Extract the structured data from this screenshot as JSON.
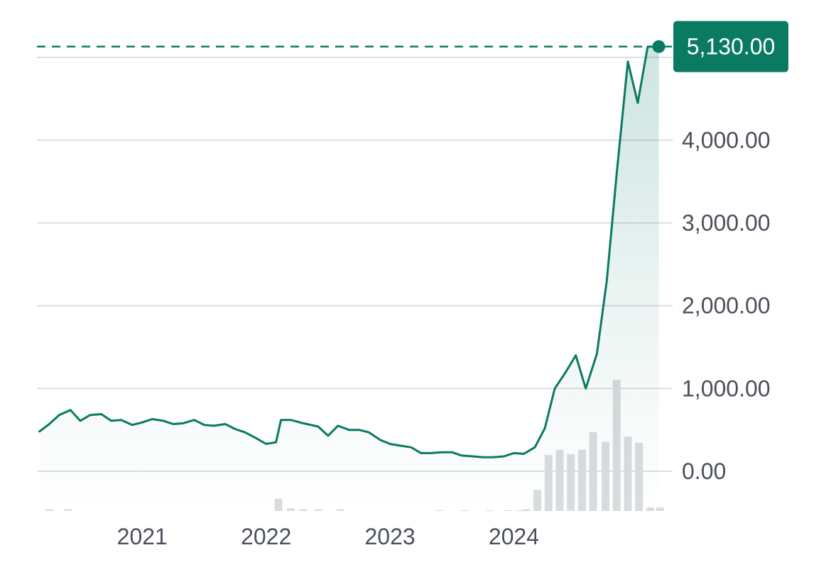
{
  "colors": {
    "line": "#0a7a63",
    "area": "#0a7a63",
    "grid": "#dcdee2",
    "volume": "#d9dcdf",
    "badge_bg": "#0a7a63",
    "badge_text": "#ffffff",
    "tick_text": "#4a4f5a"
  },
  "chart_data": {
    "type": "line",
    "title": "",
    "xlabel": "",
    "ylabel": "",
    "x_range": [
      2020.15,
      2025.27
    ],
    "ylim": [
      -480,
      5350
    ],
    "y_ticks": [
      {
        "value": 0,
        "label": "0.00"
      },
      {
        "value": 1000,
        "label": "1,000.00"
      },
      {
        "value": 2000,
        "label": "2,000.00"
      },
      {
        "value": 3000,
        "label": "3,000.00"
      },
      {
        "value": 4000,
        "label": "4,000.00"
      },
      {
        "value": 5000,
        "label": ""
      }
    ],
    "x_ticks": [
      {
        "value": 2021,
        "label": "2021"
      },
      {
        "value": 2022,
        "label": "2022"
      },
      {
        "value": 2023,
        "label": "2023"
      },
      {
        "value": 2024,
        "label": "2024"
      }
    ],
    "grid": true,
    "current_value": 5130,
    "current_label": "5,130.00",
    "series": [
      {
        "x": [
          2020.17,
          2020.25,
          2020.33,
          2020.42,
          2020.5,
          2020.58,
          2020.67,
          2020.75,
          2020.83,
          2020.92,
          2021.0,
          2021.08,
          2021.17,
          2021.25,
          2021.33,
          2021.42,
          2021.5,
          2021.58,
          2021.67,
          2021.75,
          2021.83,
          2021.92,
          2022.0,
          2022.08,
          2022.12,
          2022.2,
          2022.3,
          2022.42,
          2022.5,
          2022.58,
          2022.67,
          2022.75,
          2022.83,
          2022.92,
          2023.0,
          2023.08,
          2023.17,
          2023.25,
          2023.33,
          2023.42,
          2023.5,
          2023.58,
          2023.67,
          2023.75,
          2023.83,
          2023.92,
          2024.0,
          2024.08,
          2024.17,
          2024.25,
          2024.33,
          2024.42,
          2024.5,
          2024.58,
          2024.67,
          2024.75,
          2024.83,
          2024.92,
          2025.0,
          2025.08,
          2025.17
        ],
        "values": [
          480,
          570,
          680,
          740,
          610,
          680,
          690,
          610,
          620,
          560,
          590,
          630,
          610,
          570,
          580,
          620,
          560,
          550,
          570,
          510,
          470,
          400,
          330,
          350,
          620,
          620,
          580,
          540,
          430,
          550,
          500,
          500,
          470,
          380,
          330,
          310,
          290,
          220,
          220,
          230,
          230,
          190,
          180,
          170,
          170,
          180,
          220,
          210,
          290,
          520,
          1000,
          1200,
          1400,
          1000,
          1420,
          2300,
          3600,
          4950,
          4450,
          5130,
          5130
        ]
      }
    ],
    "volume": {
      "x": [
        2020.25,
        2020.4,
        2022.1,
        2022.2,
        2022.3,
        2022.42,
        2022.6,
        2023.4,
        2023.6,
        2023.8,
        2023.95,
        2024.05,
        2024.1,
        2024.19,
        2024.28,
        2024.37,
        2024.46,
        2024.55,
        2024.64,
        2024.74,
        2024.83,
        2024.92,
        2025.01,
        2025.1,
        2025.18
      ],
      "values": [
        2,
        2,
        14,
        3,
        2,
        2,
        2,
        1,
        1,
        1,
        1,
        1,
        2,
        24,
        64,
        70,
        65,
        70,
        90,
        79,
        150,
        85,
        78,
        4,
        4
      ]
    }
  }
}
